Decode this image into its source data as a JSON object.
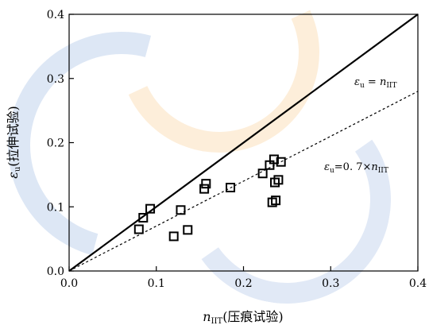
{
  "chart_data": {
    "type": "scatter",
    "xlabel": "n_IIT(压痕试验)",
    "ylabel": "ε_u(拉伸试验)",
    "xlim": [
      0.0,
      0.4
    ],
    "ylim": [
      0.0,
      0.4
    ],
    "x_ticks": [
      "0.0",
      "0.1",
      "0.2",
      "0.3",
      "0.4"
    ],
    "y_ticks": [
      "0.0",
      "0.1",
      "0.2",
      "0.3",
      "0.4"
    ],
    "grid": false,
    "lines": [
      {
        "name": "ε_u = n_IIT",
        "slope": 1.0,
        "style": "solid"
      },
      {
        "name": "ε_u = 0.7 × n_IIT",
        "slope": 0.7,
        "style": "dashed"
      }
    ],
    "points": [
      {
        "x": 0.08,
        "y": 0.065
      },
      {
        "x": 0.085,
        "y": 0.083
      },
      {
        "x": 0.093,
        "y": 0.097
      },
      {
        "x": 0.12,
        "y": 0.054
      },
      {
        "x": 0.128,
        "y": 0.095
      },
      {
        "x": 0.136,
        "y": 0.064
      },
      {
        "x": 0.155,
        "y": 0.128
      },
      {
        "x": 0.157,
        "y": 0.136
      },
      {
        "x": 0.185,
        "y": 0.13
      },
      {
        "x": 0.222,
        "y": 0.152
      },
      {
        "x": 0.23,
        "y": 0.165
      },
      {
        "x": 0.233,
        "y": 0.107
      },
      {
        "x": 0.235,
        "y": 0.174
      },
      {
        "x": 0.236,
        "y": 0.138
      },
      {
        "x": 0.237,
        "y": 0.11
      },
      {
        "x": 0.24,
        "y": 0.142
      },
      {
        "x": 0.243,
        "y": 0.17
      }
    ]
  }
}
